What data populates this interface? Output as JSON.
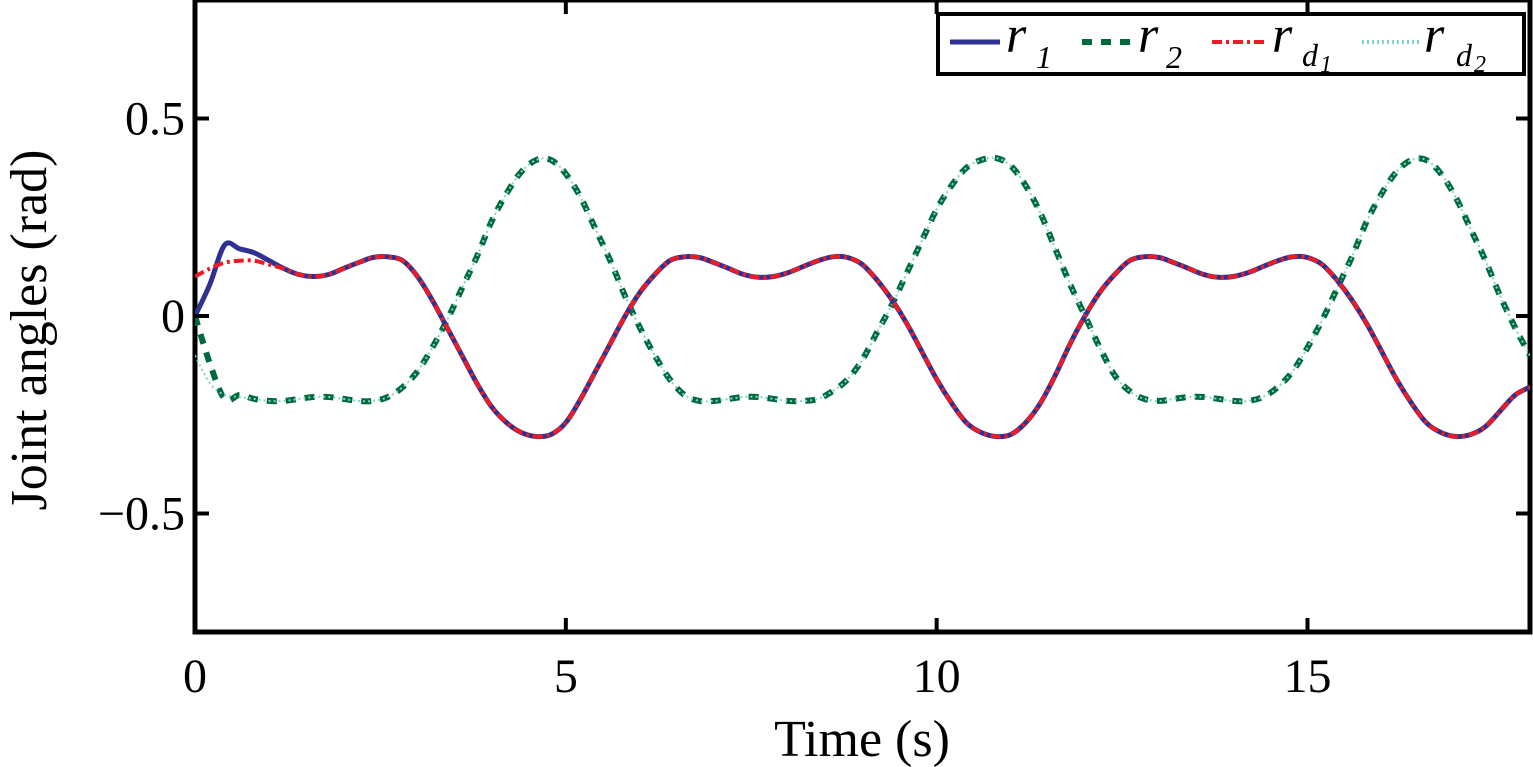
{
  "chart_data": {
    "type": "line",
    "xlabel": "Time (s)",
    "ylabel": "Joint angles (rad)",
    "xlim": [
      0,
      18
    ],
    "ylim": [
      -0.8,
      0.8
    ],
    "xticks": [
      0,
      5,
      10,
      15
    ],
    "xtick_labels": [
      "0",
      "5",
      "10",
      "15"
    ],
    "yticks": [
      -0.5,
      0,
      0.5
    ],
    "ytick_labels": [
      "−0.5",
      "0",
      "0.5"
    ],
    "grid": false,
    "legend_position": "top-right",
    "x": [
      0,
      0.2,
      0.4,
      0.6,
      0.8,
      1.0,
      1.2,
      1.4,
      1.6,
      1.8,
      2.0,
      2.2,
      2.4,
      2.6,
      2.8,
      3.0,
      3.2,
      3.4,
      3.6,
      3.8,
      4.0,
      4.2,
      4.4,
      4.6,
      4.8,
      5.0,
      5.2,
      5.4,
      5.6,
      5.8,
      6.0,
      6.2,
      6.4,
      6.6,
      6.8,
      7.0,
      7.2,
      7.4,
      7.6,
      7.8,
      8.0,
      8.2,
      8.4,
      8.6,
      8.8,
      9.0,
      9.2,
      9.4,
      9.6,
      9.8,
      10.0,
      10.2,
      10.4,
      10.6,
      10.8,
      11.0,
      11.2,
      11.4,
      11.6,
      11.8,
      12.0,
      12.2,
      12.4,
      12.6,
      12.8,
      13.0,
      13.2,
      13.4,
      13.6,
      13.8,
      14.0,
      14.2,
      14.4,
      14.6,
      14.8,
      15.0,
      15.2,
      15.4,
      15.6,
      15.8,
      16.0,
      16.2,
      16.4,
      16.6,
      16.8,
      17.0,
      17.2,
      17.4,
      17.6,
      17.8,
      18.0
    ],
    "series": [
      {
        "name": "r_1",
        "label_main": "r",
        "label_sub": "1",
        "label_subsub": "",
        "color": "#2e3192",
        "dash": "",
        "width": 5,
        "values": [
          0.0,
          0.08,
          0.18,
          0.17,
          0.16,
          0.14,
          0.12,
          0.105,
          0.1,
          0.105,
          0.12,
          0.135,
          0.148,
          0.15,
          0.14,
          0.1,
          0.04,
          -0.03,
          -0.1,
          -0.17,
          -0.23,
          -0.27,
          -0.295,
          -0.305,
          -0.3,
          -0.27,
          -0.21,
          -0.14,
          -0.07,
          0.0,
          0.06,
          0.105,
          0.14,
          0.15,
          0.148,
          0.135,
          0.12,
          0.105,
          0.098,
          0.1,
          0.11,
          0.125,
          0.14,
          0.15,
          0.148,
          0.13,
          0.09,
          0.04,
          -0.02,
          -0.09,
          -0.16,
          -0.22,
          -0.27,
          -0.295,
          -0.305,
          -0.3,
          -0.27,
          -0.22,
          -0.15,
          -0.07,
          0.0,
          0.06,
          0.105,
          0.14,
          0.15,
          0.148,
          0.135,
          0.12,
          0.105,
          0.098,
          0.1,
          0.11,
          0.125,
          0.14,
          0.15,
          0.148,
          0.13,
          0.09,
          0.04,
          -0.02,
          -0.09,
          -0.16,
          -0.22,
          -0.27,
          -0.295,
          -0.305,
          -0.3,
          -0.28,
          -0.24,
          -0.2,
          -0.18
        ]
      },
      {
        "name": "r_2",
        "label_main": "r",
        "label_sub": "2",
        "label_subsub": "",
        "color": "#006a3c",
        "dash": "10 9",
        "width": 6,
        "values": [
          0.0,
          -0.12,
          -0.21,
          -0.2,
          -0.21,
          -0.215,
          -0.215,
          -0.21,
          -0.205,
          -0.205,
          -0.21,
          -0.215,
          -0.215,
          -0.205,
          -0.18,
          -0.14,
          -0.08,
          -0.01,
          0.07,
          0.15,
          0.24,
          0.31,
          0.365,
          0.395,
          0.395,
          0.36,
          0.3,
          0.22,
          0.14,
          0.05,
          -0.03,
          -0.1,
          -0.16,
          -0.2,
          -0.215,
          -0.215,
          -0.21,
          -0.205,
          -0.205,
          -0.21,
          -0.215,
          -0.215,
          -0.21,
          -0.19,
          -0.16,
          -0.11,
          -0.04,
          0.03,
          0.11,
          0.19,
          0.27,
          0.33,
          0.375,
          0.395,
          0.4,
          0.38,
          0.33,
          0.26,
          0.17,
          0.08,
          0.0,
          -0.08,
          -0.15,
          -0.19,
          -0.21,
          -0.215,
          -0.21,
          -0.205,
          -0.205,
          -0.21,
          -0.215,
          -0.215,
          -0.205,
          -0.18,
          -0.14,
          -0.08,
          -0.01,
          0.07,
          0.15,
          0.24,
          0.31,
          0.365,
          0.395,
          0.395,
          0.36,
          0.3,
          0.22,
          0.14,
          0.05,
          -0.03,
          -0.1
        ]
      },
      {
        "name": "r_d1",
        "label_main": "r",
        "label_sub": "d",
        "label_subsub": "1",
        "color": "#ed1c24",
        "dash": "10 4 3 4",
        "width": 4,
        "values": [
          0.1,
          0.12,
          0.135,
          0.14,
          0.14,
          0.13,
          0.12,
          0.105,
          0.1,
          0.105,
          0.12,
          0.135,
          0.148,
          0.15,
          0.14,
          0.1,
          0.04,
          -0.03,
          -0.1,
          -0.17,
          -0.23,
          -0.27,
          -0.295,
          -0.305,
          -0.3,
          -0.27,
          -0.21,
          -0.14,
          -0.07,
          0.0,
          0.06,
          0.105,
          0.14,
          0.15,
          0.148,
          0.135,
          0.12,
          0.105,
          0.098,
          0.1,
          0.11,
          0.125,
          0.14,
          0.15,
          0.148,
          0.13,
          0.09,
          0.04,
          -0.02,
          -0.09,
          -0.16,
          -0.22,
          -0.27,
          -0.295,
          -0.305,
          -0.3,
          -0.27,
          -0.22,
          -0.15,
          -0.07,
          0.0,
          0.06,
          0.105,
          0.14,
          0.15,
          0.148,
          0.135,
          0.12,
          0.105,
          0.098,
          0.1,
          0.11,
          0.125,
          0.14,
          0.15,
          0.148,
          0.13,
          0.09,
          0.04,
          -0.02,
          -0.09,
          -0.16,
          -0.22,
          -0.27,
          -0.295,
          -0.305,
          -0.3,
          -0.28,
          -0.24,
          -0.2,
          -0.18
        ]
      },
      {
        "name": "r_d2",
        "label_main": "r",
        "label_sub": "d",
        "label_subsub": "2",
        "color": "#7fd6c8",
        "dash": "2 3",
        "width": 2,
        "values": [
          -0.1,
          -0.17,
          -0.2,
          -0.205,
          -0.21,
          -0.215,
          -0.215,
          -0.21,
          -0.205,
          -0.205,
          -0.21,
          -0.215,
          -0.215,
          -0.205,
          -0.18,
          -0.14,
          -0.08,
          -0.01,
          0.07,
          0.15,
          0.24,
          0.31,
          0.365,
          0.395,
          0.395,
          0.36,
          0.3,
          0.22,
          0.14,
          0.05,
          -0.03,
          -0.1,
          -0.16,
          -0.2,
          -0.215,
          -0.215,
          -0.21,
          -0.205,
          -0.205,
          -0.21,
          -0.215,
          -0.215,
          -0.21,
          -0.19,
          -0.16,
          -0.11,
          -0.04,
          0.03,
          0.11,
          0.19,
          0.27,
          0.33,
          0.375,
          0.395,
          0.4,
          0.38,
          0.33,
          0.26,
          0.17,
          0.08,
          0.0,
          -0.08,
          -0.15,
          -0.19,
          -0.21,
          -0.215,
          -0.21,
          -0.205,
          -0.205,
          -0.21,
          -0.215,
          -0.215,
          -0.205,
          -0.18,
          -0.14,
          -0.08,
          -0.01,
          0.07,
          0.15,
          0.24,
          0.31,
          0.365,
          0.395,
          0.395,
          0.36,
          0.3,
          0.22,
          0.14,
          0.05,
          -0.03,
          -0.1
        ]
      }
    ]
  }
}
